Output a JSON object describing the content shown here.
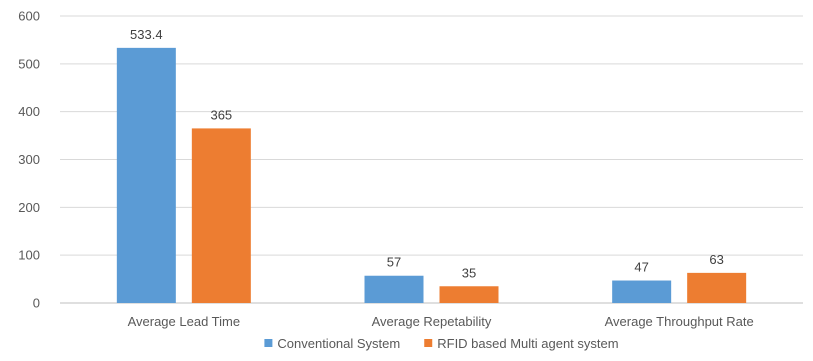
{
  "chart_data": {
    "type": "bar",
    "title": "",
    "xlabel": "",
    "ylabel": "",
    "ylim": [
      0,
      600
    ],
    "yticks": [
      0,
      100,
      200,
      300,
      400,
      500,
      600
    ],
    "grid": true,
    "legend_position": "bottom",
    "categories": [
      "Average Lead Time",
      "Average Repetability",
      "Average Throughput Rate"
    ],
    "series": [
      {
        "name": "Conventional System",
        "color": "#5b9bd5",
        "values": [
          533.4,
          57,
          47
        ],
        "labels": [
          "533.4",
          "57",
          "47"
        ]
      },
      {
        "name": "RFID based Multi agent system",
        "color": "#ed7d31",
        "values": [
          365,
          35,
          63
        ],
        "labels": [
          "365",
          "35",
          "63"
        ]
      }
    ]
  }
}
